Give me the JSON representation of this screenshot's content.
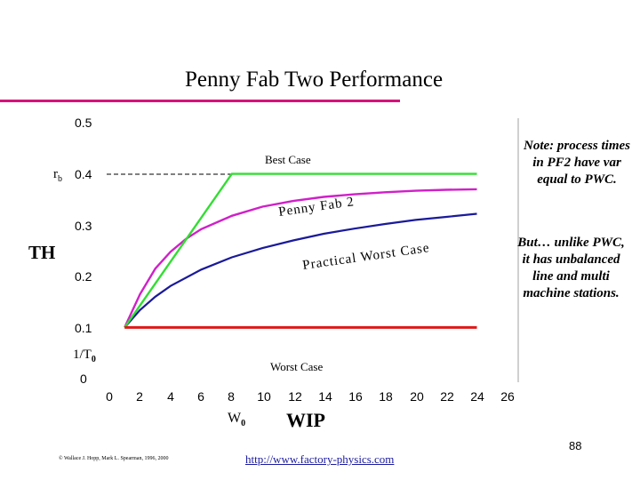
{
  "slide": {
    "title": "Penny Fab Two Performance",
    "accent_color": "#d6127a",
    "notes": [
      "Note: process times in PF2 have var equal to PWC.",
      "But… unlike PWC, it has unbalanced line and multi machine stations."
    ],
    "footer_copyright": "© Wallace J. Hopp, Mark L. Spearman, 1996, 2000",
    "footer_url": "http://www.factory-physics.com",
    "page_number": "88"
  },
  "chart_data": {
    "type": "line",
    "title": "",
    "xlabel": "WIP",
    "ylabel": "TH",
    "xlim": [
      0,
      26
    ],
    "ylim": [
      0,
      0.5
    ],
    "x_ticks": [
      "0",
      "2",
      "4",
      "6",
      "8",
      "10",
      "12",
      "14",
      "16",
      "18",
      "20",
      "22",
      "24",
      "26"
    ],
    "y_ticks": [
      "0",
      "0.1",
      "0.2",
      "0.3",
      "0.4",
      "0.5"
    ],
    "grid": false,
    "special_labels": {
      "rb_label": "r",
      "rb_sub": "b",
      "rb_value": 0.4,
      "inv_t0_label": "1/T",
      "inv_t0_sub": "0",
      "inv_t0_value": 0.1,
      "w0_label": "W",
      "w0_sub": "0"
    },
    "series": [
      {
        "name": "Best Case",
        "color": "#33dd33",
        "x": [
          1,
          8,
          24
        ],
        "y": [
          0.1,
          0.4,
          0.4
        ]
      },
      {
        "name": "Penny Fab 2",
        "color": "#d020c8",
        "x": [
          1,
          2,
          3,
          4,
          5,
          6,
          8,
          10,
          12,
          14,
          16,
          18,
          20,
          22,
          24
        ],
        "y": [
          0.1,
          0.165,
          0.215,
          0.248,
          0.273,
          0.292,
          0.318,
          0.336,
          0.347,
          0.355,
          0.36,
          0.364,
          0.367,
          0.369,
          0.37
        ]
      },
      {
        "name": "Practical Worst Case",
        "color": "#1a1a9a",
        "x": [
          1,
          2,
          3,
          4,
          6,
          8,
          10,
          12,
          14,
          16,
          18,
          20,
          22,
          24
        ],
        "y": [
          0.1,
          0.134,
          0.16,
          0.181,
          0.213,
          0.237,
          0.255,
          0.27,
          0.283,
          0.293,
          0.302,
          0.31,
          0.316,
          0.322
        ]
      },
      {
        "name": "Worst Case",
        "color": "#e01818",
        "x": [
          1,
          24
        ],
        "y": [
          0.1,
          0.1
        ]
      }
    ]
  }
}
